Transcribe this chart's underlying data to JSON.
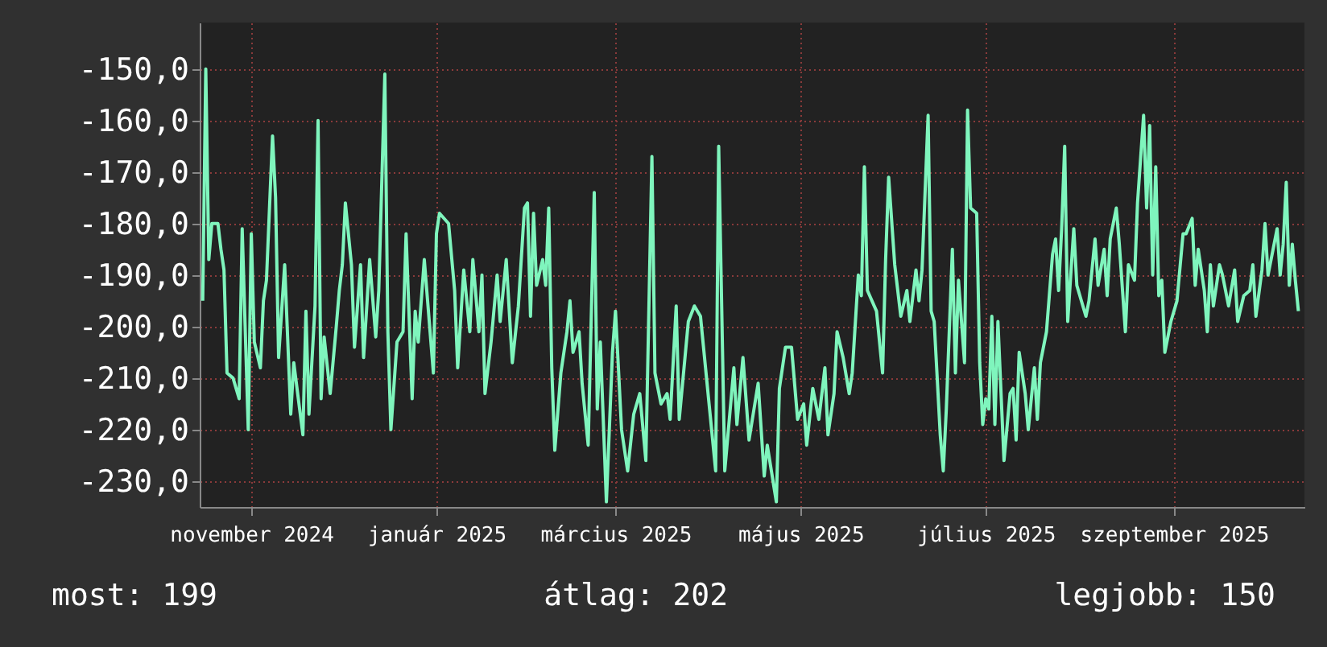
{
  "chart_data": {
    "type": "line",
    "x": [
      "2024-10-16",
      "2024-10-17",
      "2024-10-18",
      "2024-10-19",
      "2024-10-21",
      "2024-10-22",
      "2024-10-23",
      "2024-10-24",
      "2024-10-26",
      "2024-10-28",
      "2024-10-29",
      "2024-10-31",
      "2024-11-01",
      "2024-11-02",
      "2024-11-04",
      "2024-11-05",
      "2024-11-06",
      "2024-11-08",
      "2024-11-09",
      "2024-11-10",
      "2024-11-12",
      "2024-11-14",
      "2024-11-15",
      "2024-11-18",
      "2024-11-19",
      "2024-11-20",
      "2024-11-22",
      "2024-11-23",
      "2024-11-24",
      "2024-11-25",
      "2024-11-27",
      "2024-11-29",
      "2024-11-30",
      "2024-12-01",
      "2024-12-02",
      "2024-12-04",
      "2024-12-05",
      "2024-12-07",
      "2024-12-08",
      "2024-12-10",
      "2024-12-12",
      "2024-12-13",
      "2024-12-15",
      "2024-12-16",
      "2024-12-17",
      "2024-12-19",
      "2024-12-21",
      "2024-12-22",
      "2024-12-24",
      "2024-12-25",
      "2024-12-26",
      "2024-12-28",
      "2024-12-31",
      "2025-01-01",
      "2025-01-02",
      "2025-01-05",
      "2025-01-07",
      "2025-01-08",
      "2025-01-10",
      "2025-01-12",
      "2025-01-13",
      "2025-01-15",
      "2025-01-16",
      "2025-01-17",
      "2025-01-19",
      "2025-01-21",
      "2025-01-22",
      "2025-01-24",
      "2025-01-26",
      "2025-01-28",
      "2025-01-30",
      "2025-01-31",
      "2025-02-01",
      "2025-02-02",
      "2025-02-03",
      "2025-02-05",
      "2025-02-06",
      "2025-02-07",
      "2025-02-08",
      "2025-02-09",
      "2025-02-11",
      "2025-02-13",
      "2025-02-14",
      "2025-02-15",
      "2025-02-17",
      "2025-02-18",
      "2025-02-20",
      "2025-02-22",
      "2025-02-23",
      "2025-02-24",
      "2025-02-26",
      "2025-02-28",
      "2025-03-01",
      "2025-03-03",
      "2025-03-05",
      "2025-03-07",
      "2025-03-09",
      "2025-03-11",
      "2025-03-13",
      "2025-03-14",
      "2025-03-16",
      "2025-03-18",
      "2025-03-19",
      "2025-03-21",
      "2025-03-22",
      "2025-03-25",
      "2025-03-27",
      "2025-03-29",
      "2025-04-01",
      "2025-04-03",
      "2025-04-04",
      "2025-04-06",
      "2025-04-09",
      "2025-04-10",
      "2025-04-12",
      "2025-04-14",
      "2025-04-17",
      "2025-04-19",
      "2025-04-20",
      "2025-04-23",
      "2025-04-24",
      "2025-04-26",
      "2025-04-28",
      "2025-04-30",
      "2025-05-02",
      "2025-05-03",
      "2025-05-05",
      "2025-05-07",
      "2025-05-09",
      "2025-05-10",
      "2025-05-12",
      "2025-05-13",
      "2025-05-15",
      "2025-05-17",
      "2025-05-18",
      "2025-05-20",
      "2025-05-21",
      "2025-05-22",
      "2025-05-23",
      "2025-05-26",
      "2025-05-28",
      "2025-05-29",
      "2025-05-30",
      "2025-06-01",
      "2025-06-03",
      "2025-06-05",
      "2025-06-06",
      "2025-06-08",
      "2025-06-09",
      "2025-06-10",
      "2025-06-12",
      "2025-06-13",
      "2025-06-14",
      "2025-06-16",
      "2025-06-17",
      "2025-06-18",
      "2025-06-20",
      "2025-06-21",
      "2025-06-22",
      "2025-06-24",
      "2025-06-25",
      "2025-06-26",
      "2025-06-28",
      "2025-06-29",
      "2025-06-30",
      "2025-07-01",
      "2025-07-02",
      "2025-07-03",
      "2025-07-04",
      "2025-07-05",
      "2025-07-07",
      "2025-07-09",
      "2025-07-10",
      "2025-07-11",
      "2025-07-12",
      "2025-07-14",
      "2025-07-15",
      "2025-07-17",
      "2025-07-18",
      "2025-07-19",
      "2025-07-21",
      "2025-07-23",
      "2025-07-24",
      "2025-07-25",
      "2025-07-26",
      "2025-07-27",
      "2025-07-28",
      "2025-07-30",
      "2025-07-31",
      "2025-08-03",
      "2025-08-04",
      "2025-08-06",
      "2025-08-07",
      "2025-08-09",
      "2025-08-10",
      "2025-08-11",
      "2025-08-13",
      "2025-08-14",
      "2025-08-16",
      "2025-08-17",
      "2025-08-19",
      "2025-08-20",
      "2025-08-22",
      "2025-08-23",
      "2025-08-24",
      "2025-08-25",
      "2025-08-26",
      "2025-08-27",
      "2025-08-28",
      "2025-08-29",
      "2025-08-31",
      "2025-09-02",
      "2025-09-04",
      "2025-09-05",
      "2025-09-07",
      "2025-09-08",
      "2025-09-09",
      "2025-09-11",
      "2025-09-12",
      "2025-09-13",
      "2025-09-14",
      "2025-09-16",
      "2025-09-17",
      "2025-09-19",
      "2025-09-21",
      "2025-09-22",
      "2025-09-24",
      "2025-09-26",
      "2025-09-27",
      "2025-09-28",
      "2025-09-30",
      "2025-10-01",
      "2025-10-02",
      "2025-10-03",
      "2025-10-05",
      "2025-10-06",
      "2025-10-07",
      "2025-10-08",
      "2025-10-09",
      "2025-10-10",
      "2025-10-11",
      "2025-10-12"
    ],
    "series": [
      {
        "color": "#7ff5bd",
        "values": [
          -195,
          -150,
          -187,
          -180,
          -180,
          -185,
          -189,
          -209,
          -210,
          -214,
          -181,
          -220,
          -182,
          -203,
          -208,
          -195,
          -191,
          -163,
          -175,
          -206,
          -188,
          -217,
          -207,
          -221,
          -197,
          -217,
          -196,
          -160,
          -214,
          -202,
          -213,
          -200,
          -193,
          -188,
          -176,
          -188,
          -204,
          -188,
          -206,
          -187,
          -202,
          -193,
          -151,
          -201,
          -220,
          -203,
          -201,
          -182,
          -214,
          -197,
          -203,
          -187,
          -209,
          -182,
          -178,
          -180,
          -193,
          -208,
          -189,
          -201,
          -187,
          -201,
          -190,
          -213,
          -203,
          -190,
          -199,
          -187,
          -207,
          -196,
          -177,
          -176,
          -198,
          -178,
          -192,
          -187,
          -192,
          -177,
          -208,
          -224,
          -209,
          -201,
          -195,
          -205,
          -201,
          -211,
          -223,
          -174,
          -216,
          -203,
          -234,
          -205,
          -197,
          -220,
          -228,
          -217,
          -213,
          -226,
          -167,
          -209,
          -215,
          -213,
          -218,
          -196,
          -218,
          -199,
          -196,
          -198,
          -216,
          -228,
          -165,
          -228,
          -208,
          -219,
          -206,
          -222,
          -211,
          -229,
          -223,
          -234,
          -212,
          -204,
          -204,
          -218,
          -215,
          -223,
          -212,
          -218,
          -208,
          -221,
          -213,
          -201,
          -206,
          -213,
          -209,
          -190,
          -194,
          -169,
          -193,
          -197,
          -209,
          -187,
          -171,
          -188,
          -198,
          -193,
          -199,
          -189,
          -195,
          -189,
          -159,
          -197,
          -199,
          -221,
          -228,
          -216,
          -185,
          -209,
          -191,
          -207,
          -158,
          -177,
          -178,
          -207,
          -219,
          -214,
          -216,
          -198,
          -219,
          -199,
          -226,
          -213,
          -212,
          -222,
          -205,
          -213,
          -220,
          -208,
          -218,
          -207,
          -201,
          -186,
          -183,
          -193,
          -181,
          -165,
          -199,
          -181,
          -192,
          -198,
          -195,
          -183,
          -192,
          -185,
          -194,
          -183,
          -177,
          -184,
          -201,
          -188,
          -191,
          -176,
          -159,
          -177,
          -161,
          -190,
          -169,
          -194,
          -191,
          -205,
          -199,
          -195,
          -182,
          -182,
          -179,
          -192,
          -185,
          -193,
          -201,
          -188,
          -196,
          -188,
          -190,
          -196,
          -189,
          -199,
          -194,
          -193,
          -188,
          -198,
          -189,
          -180,
          -190,
          -187,
          -181,
          -190,
          -184,
          -172,
          -192,
          -184,
          -191,
          -197
        ]
      }
    ],
    "xlim": [
      "2024-10-15",
      "2025-10-14"
    ],
    "xticks": [
      {
        "value": "2024-11-01",
        "label": "november 2024"
      },
      {
        "value": "2025-01-01",
        "label": "január 2025"
      },
      {
        "value": "2025-03-01",
        "label": "március 2025"
      },
      {
        "value": "2025-05-01",
        "label": "május 2025"
      },
      {
        "value": "2025-07-01",
        "label": "július 2025"
      },
      {
        "value": "2025-09-01",
        "label": "szeptember 2025"
      }
    ],
    "ylim": [
      -235,
      -141
    ],
    "yticks": [
      {
        "value": -150,
        "label": "-150,0"
      },
      {
        "value": -160,
        "label": "-160,0"
      },
      {
        "value": -170,
        "label": "-170,0"
      },
      {
        "value": -180,
        "label": "-180,0"
      },
      {
        "value": -190,
        "label": "-190,0"
      },
      {
        "value": -200,
        "label": "-200,0"
      },
      {
        "value": -210,
        "label": "-210,0"
      },
      {
        "value": -220,
        "label": "-220,0"
      },
      {
        "value": -230,
        "label": "-230,0"
      }
    ],
    "grid": true,
    "annotations": [
      "most: 199",
      "átlag: 202",
      "legjobb: 150"
    ]
  }
}
